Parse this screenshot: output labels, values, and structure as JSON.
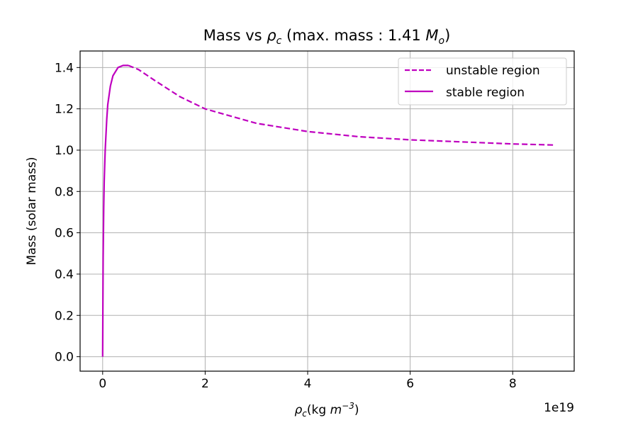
{
  "chart_data": {
    "type": "line",
    "title_prefix": "Mass vs ",
    "title_rho": "ρ",
    "title_rho_sub": "c",
    "title_mid": " (max. mass : 1.41 ",
    "title_M": "M",
    "title_M_sub": "o",
    "title_suffix": ")",
    "xlabel_rho": "ρ",
    "xlabel_rho_sub": "c",
    "xlabel_units": "(kg ",
    "xlabel_m": "m",
    "xlabel_exp": "−3",
    "xlabel_close": ")",
    "x_offset_text": "1e19",
    "ylabel": "Mass (solar mass)",
    "x_unit_scale": 1e+19,
    "xlim": [
      -0.44,
      9.2
    ],
    "ylim": [
      -0.07,
      1.48
    ],
    "xticks": [
      0,
      2,
      4,
      6,
      8
    ],
    "xtick_labels": [
      "0",
      "2",
      "4",
      "6",
      "8"
    ],
    "yticks": [
      0.0,
      0.2,
      0.4,
      0.6,
      0.8,
      1.0,
      1.2,
      1.4
    ],
    "ytick_labels": [
      "0.0",
      "0.2",
      "0.4",
      "0.6",
      "0.8",
      "1.0",
      "1.2",
      "1.4"
    ],
    "grid": true,
    "legend_position": "upper right",
    "color": "#bf00bf",
    "series": [
      {
        "name": "unstable region",
        "style": "dashed",
        "x": [
          0.5,
          0.7,
          1.0,
          1.5,
          2.0,
          3.0,
          4.0,
          5.0,
          6.0,
          7.0,
          8.0,
          8.8
        ],
        "y": [
          1.41,
          1.39,
          1.34,
          1.26,
          1.2,
          1.13,
          1.09,
          1.065,
          1.05,
          1.04,
          1.03,
          1.025
        ]
      },
      {
        "name": "stable region",
        "style": "solid",
        "x": [
          0.0,
          0.005,
          0.01,
          0.02,
          0.03,
          0.05,
          0.08,
          0.1,
          0.15,
          0.2,
          0.3,
          0.4,
          0.5
        ],
        "y": [
          0.0,
          0.28,
          0.48,
          0.72,
          0.85,
          1.0,
          1.15,
          1.22,
          1.31,
          1.36,
          1.4,
          1.41,
          1.41
        ]
      }
    ]
  }
}
